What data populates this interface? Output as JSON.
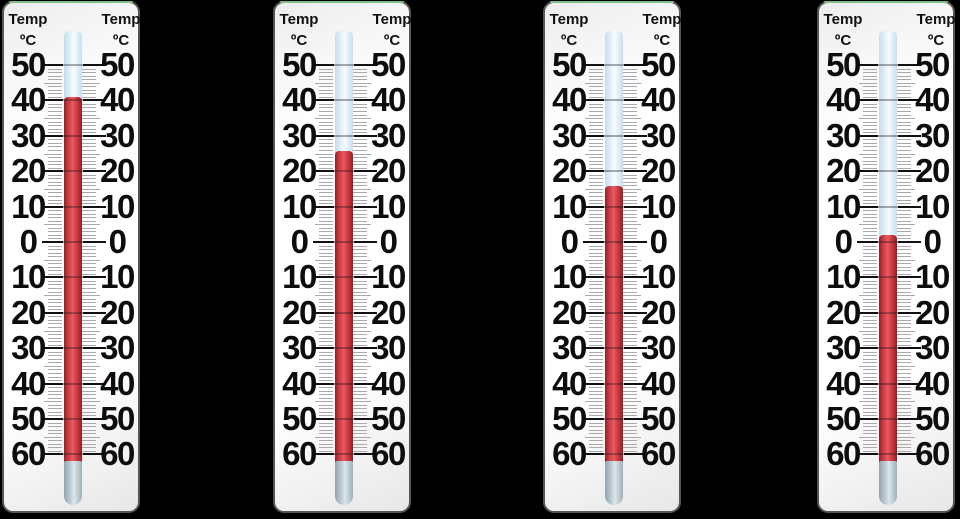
{
  "figure": {
    "description": "Four identical wall thermometers showing falling temperatures, on a black background",
    "background_color": "#000000"
  },
  "thermometer_scale": {
    "unit_label": "Temp",
    "unit_symbol": "ºC",
    "max_c": 50,
    "min_c": -60,
    "major_step_c": 10,
    "minor_step_c": 1,
    "major_tick_labels": [
      "50",
      "40",
      "30",
      "20",
      "10",
      "0",
      "10",
      "20",
      "30",
      "40",
      "50",
      "60"
    ]
  },
  "colors": {
    "mercury_red": "#d23b42",
    "empty_tube_blue": "#dcedf8",
    "bulb_gray": "#b7c4cd",
    "body_white": "#ffffff",
    "body_border": "#565656",
    "tick_minor": "#a9a9a9",
    "tick_major": "#111111",
    "text": "#111111",
    "cap_strip_green": "#85c98a"
  },
  "thermometers": [
    {
      "id": "thermometer-1",
      "reading_c": 40
    },
    {
      "id": "thermometer-2",
      "reading_c": 25
    },
    {
      "id": "thermometer-3",
      "reading_c": 15
    },
    {
      "id": "thermometer-4",
      "reading_c": 1
    }
  ]
}
